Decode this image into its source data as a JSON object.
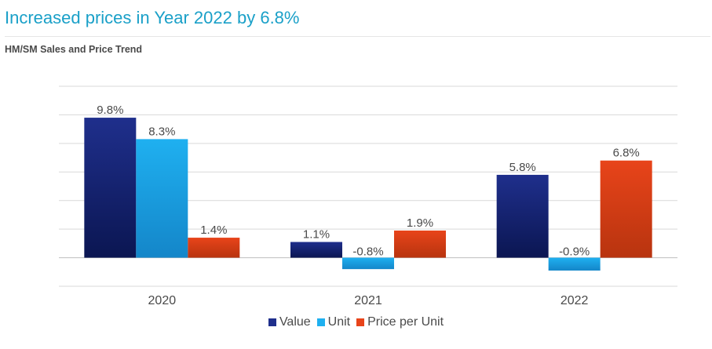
{
  "header": {
    "title": "Increased prices in Year 2022 by 6.8%",
    "subtitle": "HM/SM Sales and Price Trend"
  },
  "chart_data": {
    "type": "bar",
    "title": "HM/SM Sales and Price Trend",
    "categories": [
      "2020",
      "2021",
      "2022"
    ],
    "series": [
      {
        "name": "Value",
        "values": [
          9.8,
          1.1,
          5.8
        ],
        "labels": [
          "9.8%",
          "1.1%",
          "5.8%"
        ],
        "color_top": "#1f2f8c",
        "color_bottom": "#0b1652"
      },
      {
        "name": "Unit",
        "values": [
          8.3,
          -0.8,
          -0.9
        ],
        "labels": [
          "8.3%",
          "-0.8%",
          "-0.9%"
        ],
        "color_top": "#1fb0f0",
        "color_bottom": "#1486c9"
      },
      {
        "name": "Price per Unit",
        "values": [
          1.4,
          1.9,
          6.8
        ],
        "labels": [
          "1.4%",
          "1.9%",
          "6.8%"
        ],
        "color_top": "#e8441a",
        "color_bottom": "#b8340f"
      }
    ],
    "ylim": [
      -2,
      12
    ],
    "grid": true,
    "legend_position": "bottom"
  }
}
